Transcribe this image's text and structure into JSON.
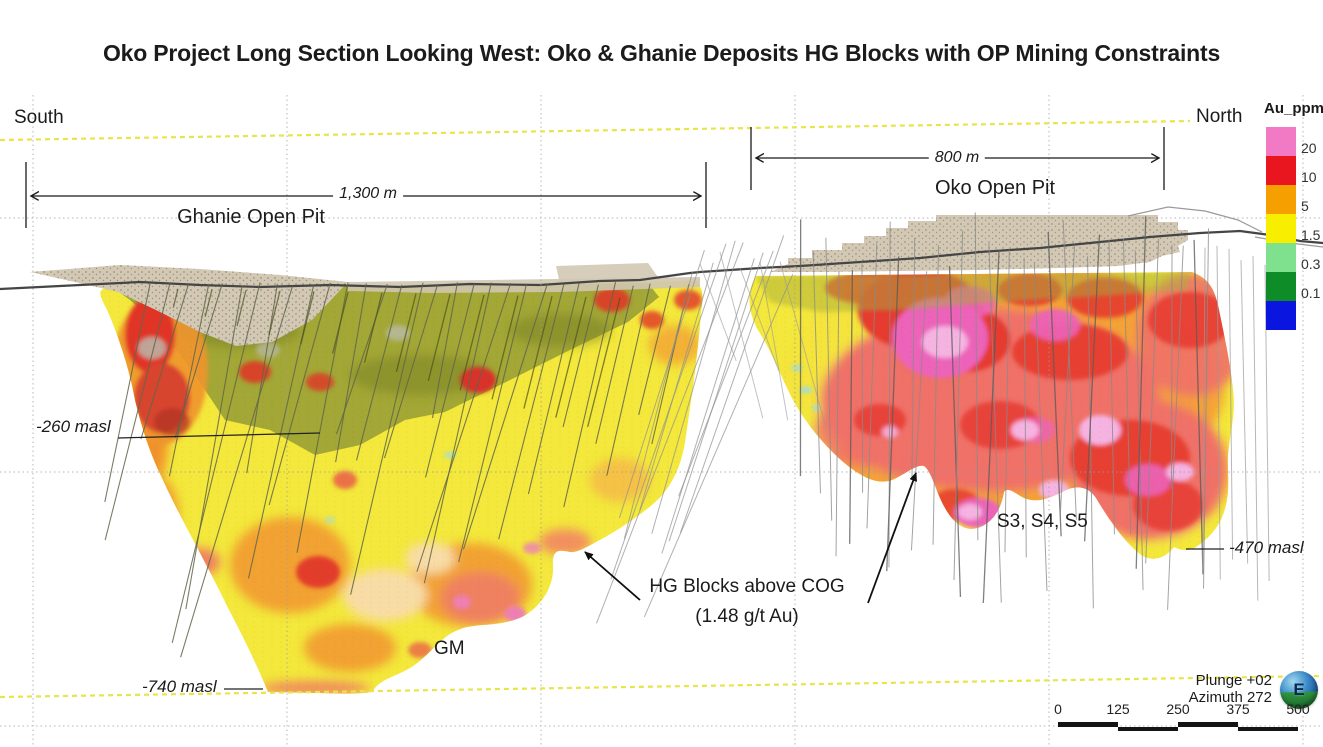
{
  "title": "Oko Project Long Section Looking West: Oko & Ghanie Deposits HG Blocks with OP Mining Constraints",
  "direction_labels": {
    "south": "South",
    "north": "North"
  },
  "pits": {
    "ghanie": {
      "dimension": "1,300 m",
      "label": "Ghanie Open Pit"
    },
    "oko": {
      "dimension": "800 m",
      "label": "Oko Open Pit"
    }
  },
  "elevations": {
    "e260": "-260 masl",
    "e470": "-470 masl",
    "e740": "-740 masl"
  },
  "annotations": {
    "hg_line1": "HG Blocks above COG",
    "hg_line2": "(1.48 g/t Au)",
    "s_zones": "S3, S4, S5",
    "gm": "GM"
  },
  "legend": {
    "title": "Au_ppm",
    "entries": [
      {
        "label": "20",
        "color": "#f279c3"
      },
      {
        "label": "10",
        "color": "#e9151f"
      },
      {
        "label": "5",
        "color": "#f5a000"
      },
      {
        "label": "1.5",
        "color": "#f8ee00"
      },
      {
        "label": "0.3",
        "color": "#7fe08d"
      },
      {
        "label": "0.1",
        "color": "#0d8c28"
      },
      {
        "label": "",
        "color": "#0a16e0"
      }
    ]
  },
  "view_info": {
    "plunge": "Plunge +02",
    "azimuth": "Azimuth 272",
    "compass_letter": "E"
  },
  "scale_bar": {
    "ticks": [
      "0",
      "125",
      "250",
      "375",
      "500"
    ],
    "units_per_tick": 125
  }
}
